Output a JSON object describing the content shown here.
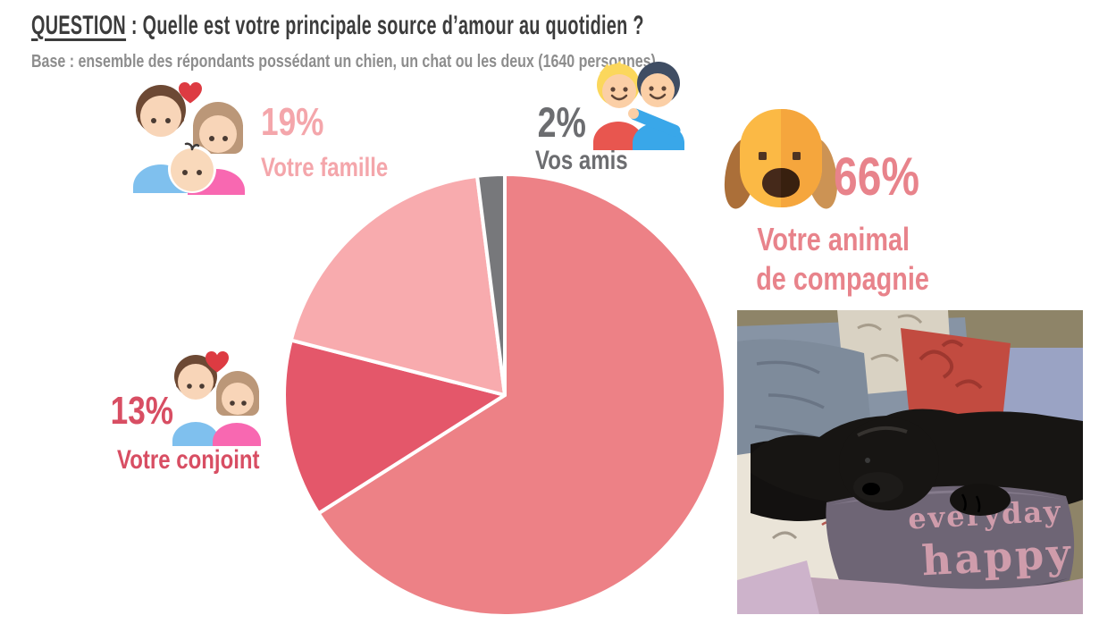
{
  "header": {
    "question_label": "QUESTION",
    "title_rest": " : Quelle est votre principale source d’amour au quotidien ?",
    "base_note": "Base : ensemble des répondants possédant un chien, un chat ou les deux (1640 personnes)"
  },
  "chart_data": {
    "type": "pie",
    "title": "Quelle est votre principale source d’amour au quotidien ?",
    "start_angle_deg": 0,
    "direction": "clockwise",
    "legend_position": "around-chart-with-icons",
    "slices": [
      {
        "id": "animal",
        "label": "Votre animal de compagnie",
        "label_lines": [
          "Votre animal",
          "de compagnie"
        ],
        "pct_label": "66%",
        "value_pct": 66,
        "color": "#ed8186",
        "text_color": "#e8838b",
        "icon": "dog-icon"
      },
      {
        "id": "conjoint",
        "label": "Votre conjoint",
        "pct_label": "13%",
        "value_pct": 13,
        "color": "#e4576a",
        "text_color": "#d84e63",
        "icon": "couple-icon"
      },
      {
        "id": "famille",
        "label": "Votre famille",
        "pct_label": "19%",
        "value_pct": 19,
        "color": "#f8abae",
        "text_color": "#f4a6ab",
        "icon": "family-icon"
      },
      {
        "id": "amis",
        "label": "Vos amis",
        "pct_label": "2%",
        "value_pct": 2,
        "color": "#77787b",
        "text_color": "#6c6d70",
        "icon": "friends-icon"
      }
    ]
  },
  "photo": {
    "subject": "black cocker spaniel sleeping on sofa cushions",
    "pillow_text_lines": [
      "everyday",
      "happy"
    ]
  }
}
